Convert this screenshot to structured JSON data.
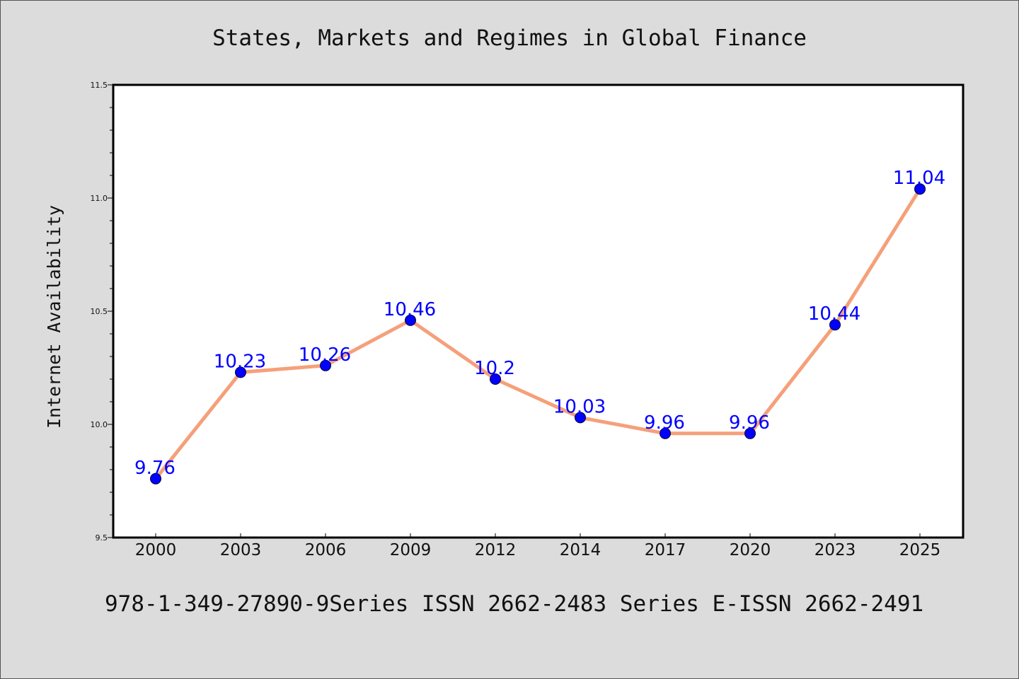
{
  "colors": {
    "background": "#dcdcdc",
    "plot_background": "#ffffff",
    "line": "#f5a07a",
    "marker": "#0000ff",
    "data_label": "#0000ff"
  },
  "chart_data": {
    "type": "line",
    "title": "States, Markets and Regimes in Global Finance",
    "xlabel": "",
    "ylabel": "Internet Availability",
    "categories": [
      "2000",
      "2003",
      "2006",
      "2009",
      "2012",
      "2014",
      "2017",
      "2020",
      "2023",
      "2025"
    ],
    "series": [
      {
        "values": [
          9.76,
          10.23,
          10.26,
          10.46,
          10.2,
          10.03,
          9.96,
          9.96,
          10.44,
          11.04
        ],
        "labels": [
          "9.76",
          "10.23",
          "10.26",
          "10.46",
          "10.2",
          "10.03",
          "9.96",
          "9.96",
          "10.44",
          "11.04"
        ]
      }
    ],
    "ylim": [
      9.5,
      11.5
    ],
    "yticks": [
      "9.5",
      "10.0",
      "10.5",
      "11.0",
      "11.5"
    ],
    "ytick_values": [
      9.5,
      10.0,
      10.5,
      11.0,
      11.5
    ],
    "yminor_step": 0.1,
    "grid": false,
    "legend": "none",
    "footer": "978-1-349-27890-9Series ISSN 2662-2483 Series E-ISSN 2662-2491"
  }
}
